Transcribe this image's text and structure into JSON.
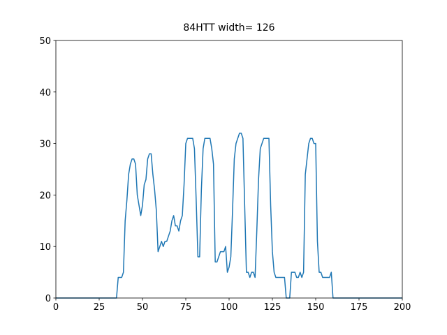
{
  "chart_data": {
    "type": "line",
    "title": "84HTT width= 126",
    "x": [
      0,
      35,
      36,
      37,
      38,
      39,
      40,
      41,
      42,
      43,
      44,
      45,
      46,
      47,
      48,
      49,
      50,
      51,
      52,
      53,
      54,
      55,
      56,
      57,
      58,
      59,
      60,
      61,
      62,
      63,
      64,
      65,
      66,
      67,
      68,
      69,
      70,
      71,
      72,
      73,
      74,
      75,
      76,
      77,
      78,
      79,
      80,
      81,
      82,
      83,
      84,
      85,
      86,
      87,
      88,
      89,
      90,
      91,
      92,
      93,
      94,
      95,
      96,
      97,
      98,
      99,
      100,
      101,
      102,
      103,
      104,
      105,
      106,
      107,
      108,
      109,
      110,
      111,
      112,
      113,
      114,
      115,
      116,
      117,
      118,
      119,
      120,
      121,
      122,
      123,
      124,
      125,
      126,
      127,
      128,
      129,
      130,
      131,
      132,
      133,
      134,
      135,
      136,
      137,
      138,
      139,
      140,
      141,
      142,
      143,
      144,
      145,
      146,
      147,
      148,
      149,
      150,
      151,
      152,
      153,
      154,
      155,
      156,
      157,
      158,
      159,
      160,
      200
    ],
    "series": [
      {
        "color": "#1f77b4",
        "values": [
          0,
          0,
          4,
          4,
          4,
          5,
          15,
          19,
          24,
          26,
          27,
          27,
          26,
          20,
          18,
          16,
          18,
          22,
          23,
          27,
          28,
          28,
          24,
          21,
          17,
          9,
          10,
          11,
          10,
          11,
          11,
          12,
          13,
          15,
          16,
          14,
          14,
          13,
          15,
          16,
          22,
          30,
          31,
          31,
          31,
          31,
          29,
          19,
          8,
          8,
          21,
          29,
          31,
          31,
          31,
          31,
          29,
          26,
          7,
          7,
          8,
          9,
          9,
          9,
          10,
          5,
          6,
          8,
          17,
          27,
          30,
          31,
          32,
          32,
          31,
          18,
          5,
          5,
          4,
          5,
          5,
          4,
          13,
          23,
          29,
          30,
          31,
          31,
          31,
          31,
          18,
          9,
          5,
          4,
          4,
          4,
          4,
          4,
          4,
          0,
          0,
          0,
          5,
          5,
          5,
          4,
          4,
          5,
          4,
          5,
          24,
          27,
          30,
          31,
          31,
          30,
          30,
          11,
          5,
          5,
          4,
          4,
          4,
          4,
          4,
          5,
          0,
          0
        ]
      }
    ],
    "xlim": [
      0,
      200
    ],
    "ylim": [
      0,
      50
    ],
    "xticks": [
      0,
      25,
      50,
      75,
      100,
      125,
      150,
      175,
      200
    ],
    "yticks": [
      0,
      10,
      20,
      30,
      40,
      50
    ]
  }
}
